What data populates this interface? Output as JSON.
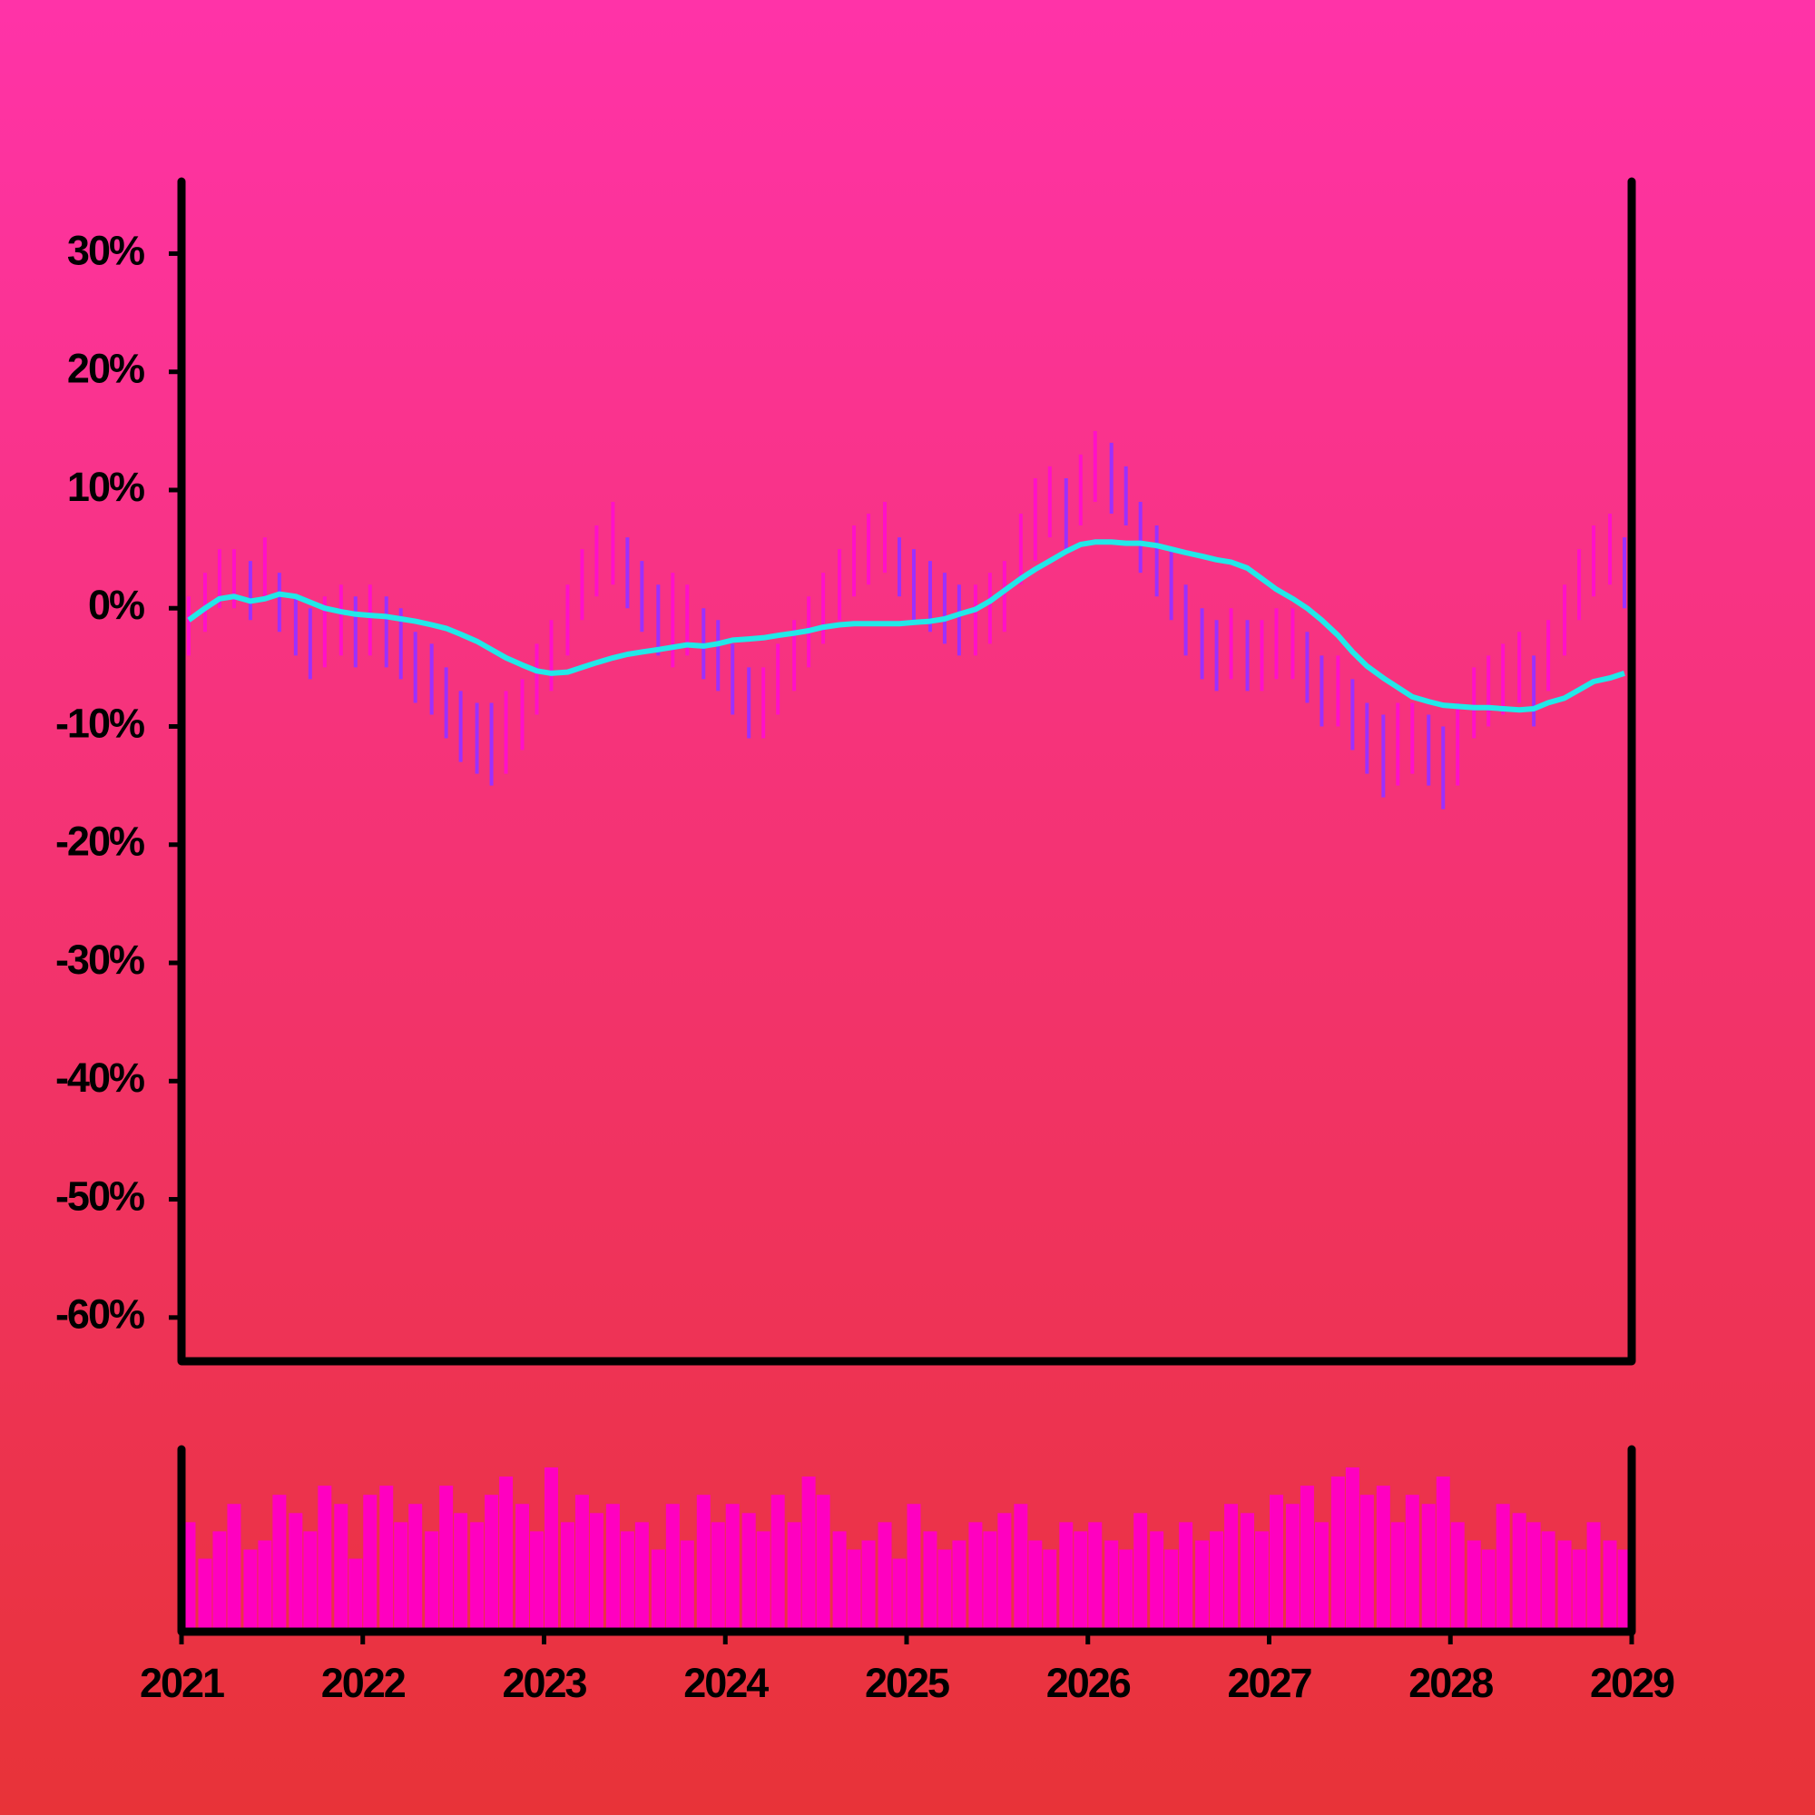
{
  "chart_data": {
    "type": "ohlc",
    "xlim": [
      2021,
      2029
    ],
    "xticks": [
      2021,
      2022,
      2023,
      2024,
      2025,
      2026,
      2027,
      2028,
      2029
    ],
    "ylim": [
      -63.7,
      36.1
    ],
    "yticks": [
      {
        "value": 30,
        "label": "30%"
      },
      {
        "value": 20,
        "label": "20%"
      },
      {
        "value": 10,
        "label": "10%"
      },
      {
        "value": 0,
        "label": "0%"
      },
      {
        "value": -10,
        "label": "-10%"
      },
      {
        "value": -20,
        "label": "-20%"
      },
      {
        "value": -30,
        "label": "-30%"
      },
      {
        "value": -40,
        "label": "-40%"
      },
      {
        "value": -50,
        "label": "-50%"
      },
      {
        "value": -60,
        "label": "-60%"
      }
    ],
    "up_color": "#ff10c8",
    "down_color": "#9b30ff",
    "x": [
      2021.04,
      2021.13,
      2021.21,
      2021.29,
      2021.38,
      2021.46,
      2021.54,
      2021.63,
      2021.71,
      2021.79,
      2021.88,
      2021.96,
      2022.04,
      2022.13,
      2022.21,
      2022.29,
      2022.38,
      2022.46,
      2022.54,
      2022.63,
      2022.71,
      2022.79,
      2022.88,
      2022.96,
      2023.04,
      2023.13,
      2023.21,
      2023.29,
      2023.38,
      2023.46,
      2023.54,
      2023.63,
      2023.71,
      2023.79,
      2023.88,
      2023.96,
      2024.04,
      2024.13,
      2024.21,
      2024.29,
      2024.38,
      2024.46,
      2024.54,
      2024.63,
      2024.71,
      2024.79,
      2024.88,
      2024.96,
      2025.04,
      2025.13,
      2025.21,
      2025.29,
      2025.38,
      2025.46,
      2025.54,
      2025.63,
      2025.71,
      2025.79,
      2025.88,
      2025.96,
      2026.04,
      2026.13,
      2026.21,
      2026.29,
      2026.38,
      2026.46,
      2026.54,
      2026.63,
      2026.71,
      2026.79,
      2026.88,
      2026.96,
      2027.04,
      2027.13,
      2027.21,
      2027.29,
      2027.38,
      2027.46,
      2027.54,
      2027.63,
      2027.71,
      2027.79,
      2027.88,
      2027.96,
      2028.04,
      2028.13,
      2028.21,
      2028.29,
      2028.38,
      2028.46,
      2028.54,
      2028.63,
      2028.71,
      2028.79,
      2028.88,
      2028.96
    ],
    "high": [
      1,
      3,
      5,
      5,
      4,
      6,
      3,
      1,
      0,
      1,
      2,
      1,
      2,
      1,
      0,
      -2,
      -3,
      -5,
      -7,
      -8,
      -8,
      -7,
      -6,
      -3,
      -1,
      2,
      5,
      7,
      9,
      6,
      4,
      2,
      3,
      2,
      0,
      -1,
      -3,
      -5,
      -5,
      -3,
      -1,
      1,
      3,
      5,
      7,
      8,
      9,
      6,
      5,
      4,
      3,
      2,
      2,
      3,
      4,
      8,
      11,
      12,
      11,
      13,
      15,
      14,
      12,
      9,
      7,
      5,
      2,
      0,
      -1,
      0,
      -1,
      -1,
      0,
      0,
      -2,
      -4,
      -4,
      -6,
      -8,
      -9,
      -8,
      -8,
      -9,
      -10,
      -8,
      -5,
      -4,
      -3,
      -2,
      -4,
      -1,
      2,
      5,
      7,
      8,
      6
    ],
    "low": [
      -4,
      -2,
      0,
      0,
      -1,
      1,
      -2,
      -4,
      -6,
      -5,
      -4,
      -5,
      -4,
      -5,
      -6,
      -8,
      -9,
      -11,
      -13,
      -14,
      -15,
      -14,
      -12,
      -9,
      -7,
      -4,
      -1,
      1,
      2,
      0,
      -2,
      -4,
      -5,
      -4,
      -6,
      -7,
      -9,
      -11,
      -11,
      -9,
      -7,
      -5,
      -3,
      -1,
      1,
      2,
      3,
      1,
      -1,
      -2,
      -3,
      -4,
      -4,
      -3,
      -2,
      2,
      4,
      6,
      5,
      7,
      9,
      8,
      7,
      3,
      1,
      -1,
      -4,
      -6,
      -7,
      -6,
      -7,
      -7,
      -6,
      -6,
      -8,
      -10,
      -10,
      -12,
      -14,
      -16,
      -15,
      -14,
      -15,
      -17,
      -15,
      -11,
      -10,
      -9,
      -8,
      -10,
      -7,
      -4,
      -1,
      1,
      2,
      0
    ],
    "ma": [
      -1,
      0,
      0.8,
      1,
      0.6,
      0.8,
      1.2,
      1,
      0.5,
      0,
      -0.3,
      -0.5,
      -0.6,
      -0.7,
      -0.9,
      -1.1,
      -1.4,
      -1.7,
      -2.2,
      -2.8,
      -3.5,
      -4.2,
      -4.8,
      -5.3,
      -5.5,
      -5.4,
      -5.0,
      -4.6,
      -4.2,
      -3.9,
      -3.7,
      -3.5,
      -3.3,
      -3.1,
      -3.2,
      -3.0,
      -2.7,
      -2.6,
      -2.5,
      -2.3,
      -2.1,
      -1.9,
      -1.6,
      -1.4,
      -1.3,
      -1.3,
      -1.3,
      -1.3,
      -1.2,
      -1.1,
      -0.9,
      -0.5,
      -0.1,
      0.6,
      1.5,
      2.5,
      3.3,
      4.0,
      4.8,
      5.4,
      5.6,
      5.6,
      5.5,
      5.5,
      5.3,
      5.0,
      4.7,
      4.4,
      4.1,
      3.9,
      3.4,
      2.5,
      1.6,
      0.8,
      0,
      -1,
      -2.3,
      -3.7,
      -4.9,
      -5.9,
      -6.7,
      -7.5,
      -7.9,
      -8.2,
      -8.3,
      -8.4,
      -8.4,
      -8.5,
      -8.6,
      -8.5,
      -8.0,
      -7.6,
      -6.9,
      -6.2,
      -5.9,
      -5.5
    ],
    "ma_color": "#22e8e8",
    "volume": [
      60,
      40,
      55,
      70,
      45,
      50,
      75,
      65,
      55,
      80,
      70,
      40,
      75,
      80,
      60,
      70,
      55,
      80,
      65,
      60,
      75,
      85,
      70,
      55,
      90,
      60,
      75,
      65,
      70,
      55,
      60,
      45,
      70,
      50,
      75,
      60,
      70,
      65,
      55,
      75,
      60,
      85,
      75,
      55,
      45,
      50,
      60,
      40,
      70,
      55,
      45,
      50,
      60,
      55,
      65,
      70,
      50,
      45,
      60,
      55,
      60,
      50,
      45,
      65,
      55,
      45,
      60,
      50,
      55,
      70,
      65,
      55,
      75,
      70,
      80,
      60,
      85,
      90,
      75,
      80,
      60,
      75,
      70,
      85,
      60,
      50,
      45,
      70,
      65,
      60,
      55,
      50,
      45,
      60,
      50,
      45
    ],
    "volume_color": "#ff00c0"
  }
}
